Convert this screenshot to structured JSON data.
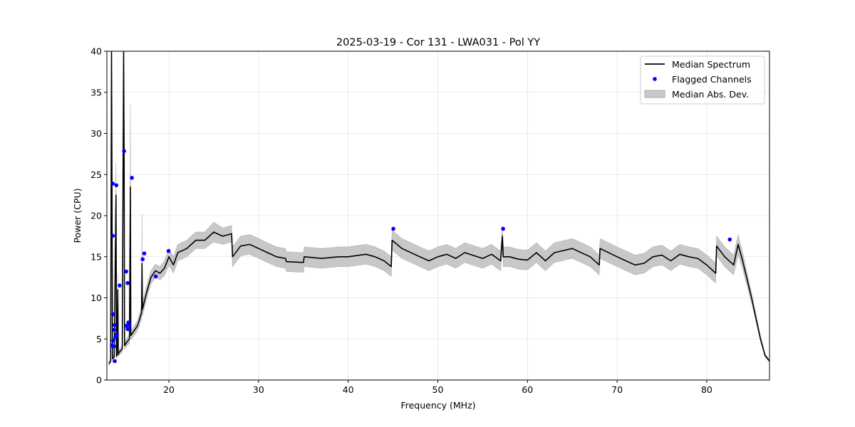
{
  "chart_data": {
    "type": "line",
    "title": "2025-03-19 - Cor 131 - LWA031 - Pol YY",
    "xlabel": "Frequency (MHz)",
    "ylabel": "Power (CPU)",
    "xlim": [
      13.08,
      87.0
    ],
    "ylim": [
      0,
      40
    ],
    "xticks": [
      20,
      30,
      40,
      50,
      60,
      70,
      80
    ],
    "yticks": [
      0,
      5,
      10,
      15,
      20,
      25,
      30,
      35,
      40
    ],
    "grid": true,
    "legend_position": "top-right",
    "legend": [
      "Median Spectrum",
      "Flagged Channels",
      "Median Abs. Dev."
    ],
    "colors": {
      "median": "#000000",
      "flagged": "#0000ff",
      "mad": "#c8c8c8"
    },
    "median_spectrum": {
      "x": [
        13.3,
        13.5,
        13.6,
        13.65,
        13.7,
        13.9,
        14.1,
        14.15,
        14.2,
        14.3,
        14.35,
        14.4,
        14.8,
        14.95,
        15.0,
        15.05,
        15.3,
        15.6,
        15.7,
        15.75,
        16.0,
        16.5,
        16.95,
        17.0,
        17.05,
        17.5,
        18.0,
        18.5,
        19.0,
        19.5,
        20.0,
        20.5,
        21.0,
        22.0,
        23.0,
        24.0,
        25.0,
        26.0,
        27.0,
        27.1,
        28.0,
        29.0,
        30.0,
        31.0,
        32.0,
        33.0,
        33.1,
        35.0,
        35.1,
        37.0,
        39.0,
        40.0,
        42.0,
        43.0,
        44.0,
        44.8,
        44.9,
        46.0,
        48.0,
        49.0,
        50.0,
        51.0,
        52.0,
        53.0,
        55.0,
        56.0,
        57.0,
        57.2,
        57.3,
        58.0,
        59.0,
        60.0,
        61.0,
        62.0,
        63.0,
        65.0,
        67.0,
        68.0,
        68.1,
        70.0,
        72.0,
        73.0,
        74.0,
        75.0,
        76.0,
        77.0,
        78.0,
        79.0,
        80.0,
        81.0,
        81.1,
        82.0,
        83.0,
        83.5,
        84.0,
        85.0,
        86.0,
        86.5,
        87.0
      ],
      "y": [
        2.0,
        2.3,
        40,
        22.8,
        2.6,
        2.8,
        22.5,
        2.9,
        3.0,
        11,
        3.1,
        3.3,
        3.8,
        40,
        27,
        4.2,
        4.6,
        5.0,
        23.5,
        5.4,
        5.8,
        6.6,
        8.2,
        14.2,
        8.6,
        10.6,
        12.5,
        13.3,
        13.0,
        13.6,
        15.0,
        14.0,
        15.5,
        16.0,
        17.0,
        17.0,
        18.0,
        17.5,
        17.8,
        15.0,
        16.3,
        16.5,
        16.0,
        15.5,
        15.0,
        14.8,
        14.4,
        14.3,
        15.0,
        14.8,
        15.0,
        15.0,
        15.3,
        15.0,
        14.5,
        13.8,
        17.0,
        16.0,
        15.0,
        14.5,
        15.0,
        15.3,
        14.8,
        15.5,
        14.8,
        15.3,
        14.5,
        17.5,
        15.0,
        15.0,
        14.7,
        14.6,
        15.5,
        14.5,
        15.5,
        16.0,
        15.0,
        14.0,
        16.0,
        15.0,
        14.0,
        14.2,
        15.0,
        15.2,
        14.5,
        15.3,
        15.0,
        14.8,
        14.0,
        13.0,
        16.3,
        15.0,
        14.0,
        16.5,
        14.5,
        10.0,
        5.0,
        3.0,
        2.3
      ],
      "mad": [
        0.2,
        0.3,
        0,
        12,
        0.3,
        0.3,
        4,
        0.3,
        0.3,
        2,
        0.3,
        0.3,
        0.4,
        0,
        3,
        0.4,
        0.5,
        0.5,
        10,
        0.5,
        0.6,
        0.6,
        0.8,
        6,
        0.8,
        0.8,
        0.8,
        0.8,
        0.8,
        0.9,
        1.0,
        1.0,
        1.0,
        1.0,
        1.0,
        1.0,
        1.2,
        1.0,
        1.0,
        1.2,
        1.2,
        1.2,
        1.2,
        1.2,
        1.2,
        1.2,
        1.2,
        1.2,
        1.2,
        1.2,
        1.2,
        1.2,
        1.2,
        1.2,
        1.2,
        1.2,
        1.2,
        1.2,
        1.2,
        1.2,
        1.2,
        1.2,
        1.2,
        1.2,
        1.2,
        1.2,
        1.2,
        1.2,
        1.2,
        1.2,
        1.2,
        1.2,
        1.2,
        1.2,
        1.2,
        1.2,
        1.2,
        1.2,
        1.2,
        1.2,
        1.2,
        1.2,
        1.2,
        1.2,
        1.2,
        1.2,
        1.2,
        1.2,
        1.2,
        1.2,
        1.2,
        1.2,
        1.2,
        1.2,
        1.0,
        0.6,
        0.3,
        0.2,
        0.1
      ]
    },
    "flagged_channels": {
      "x": [
        13.74,
        14.14,
        15.0,
        15.87,
        13.74,
        17.07,
        17.25,
        19.96,
        18.53,
        15.24,
        15.4,
        14.5,
        13.8,
        13.96,
        13.88,
        14.2,
        14.04,
        13.8,
        13.64,
        13.88,
        13.96,
        15.24,
        15.48,
        15.56,
        15.4,
        15.48,
        45.04,
        57.28,
        82.57
      ],
      "y": [
        23.9,
        23.7,
        27.85,
        24.6,
        17.55,
        14.7,
        15.4,
        15.7,
        12.6,
        13.2,
        11.8,
        11.5,
        8.0,
        6.7,
        6.1,
        5.6,
        5.2,
        4.8,
        4.2,
        4.1,
        2.3,
        6.6,
        7.0,
        6.7,
        6.2,
        6.2,
        18.4,
        18.4,
        17.1
      ]
    }
  }
}
